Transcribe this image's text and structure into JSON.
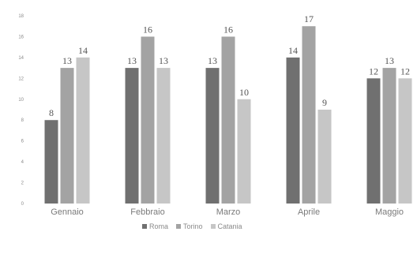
{
  "chart_data": {
    "type": "bar",
    "categories": [
      "Gennaio",
      "Febbraio",
      "Marzo",
      "Aprile",
      "Maggio"
    ],
    "series": [
      {
        "name": "Roma",
        "color": "#707070",
        "values": [
          8,
          13,
          13,
          14,
          12
        ]
      },
      {
        "name": "Torino",
        "color": "#a3a3a3",
        "values": [
          13,
          16,
          16,
          17,
          13
        ]
      },
      {
        "name": "Catania",
        "color": "#c6c6c6",
        "values": [
          14,
          13,
          10,
          9,
          12
        ]
      }
    ],
    "yticks": [
      0,
      2,
      4,
      6,
      8,
      10,
      12,
      14,
      16,
      18
    ],
    "ylim": [
      0,
      18
    ],
    "grid": false,
    "legend_position": "bottom"
  }
}
